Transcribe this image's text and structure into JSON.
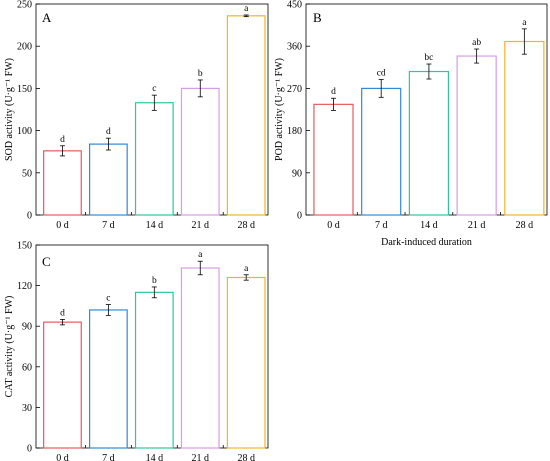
{
  "chart_data": [
    {
      "type": "bar",
      "panel_label": "A",
      "categories": [
        "0 d",
        "7 d",
        "14 d",
        "21 d",
        "28 d"
      ],
      "values": [
        76,
        84,
        133,
        150,
        236
      ],
      "errors": [
        6,
        7,
        9,
        10,
        1
      ],
      "letters": [
        "d",
        "d",
        "c",
        "b",
        "a"
      ],
      "colors": [
        "#e8595a",
        "#2f8ad6",
        "#2ec79a",
        "#d89be8",
        "#f5b324"
      ],
      "ylabel": "SOD activity (U·g⁻¹ FW)",
      "xlabel": "",
      "ylim": [
        0,
        250
      ],
      "yticks": [
        0,
        50,
        100,
        150,
        200,
        250
      ],
      "grid": false
    },
    {
      "type": "bar",
      "panel_label": "B",
      "categories": [
        "0 d",
        "7 d",
        "14 d",
        "21 d",
        "28 d"
      ],
      "values": [
        236,
        270,
        306,
        339,
        370
      ],
      "errors": [
        13,
        19,
        16,
        15,
        27
      ],
      "letters": [
        "d",
        "cd",
        "bc",
        "ab",
        "a"
      ],
      "colors": [
        "#e8595a",
        "#2f8ad6",
        "#2ec79a",
        "#d89be8",
        "#f5b324"
      ],
      "ylabel": "POD activity (U·g⁻¹ FW)",
      "xlabel": "Dark-induced duration",
      "ylim": [
        0,
        450
      ],
      "yticks": [
        0,
        90,
        180,
        270,
        360,
        450
      ],
      "grid": false
    },
    {
      "type": "bar",
      "panel_label": "C",
      "categories": [
        "0 d",
        "7 d",
        "14 d",
        "21 d",
        "28 d"
      ],
      "values": [
        93,
        102,
        115,
        133,
        126
      ],
      "errors": [
        2,
        4,
        4,
        5,
        2
      ],
      "letters": [
        "d",
        "c",
        "b",
        "a",
        "a"
      ],
      "colors": [
        "#e8595a",
        "#2f8ad6",
        "#2ec79a",
        "#d89be8",
        "#f5b324"
      ],
      "ylabel": "CAT activity (U·g⁻¹ FW)",
      "xlabel": "",
      "ylim": [
        0,
        150
      ],
      "yticks": [
        0,
        30,
        60,
        90,
        120,
        150
      ],
      "grid": false
    }
  ]
}
